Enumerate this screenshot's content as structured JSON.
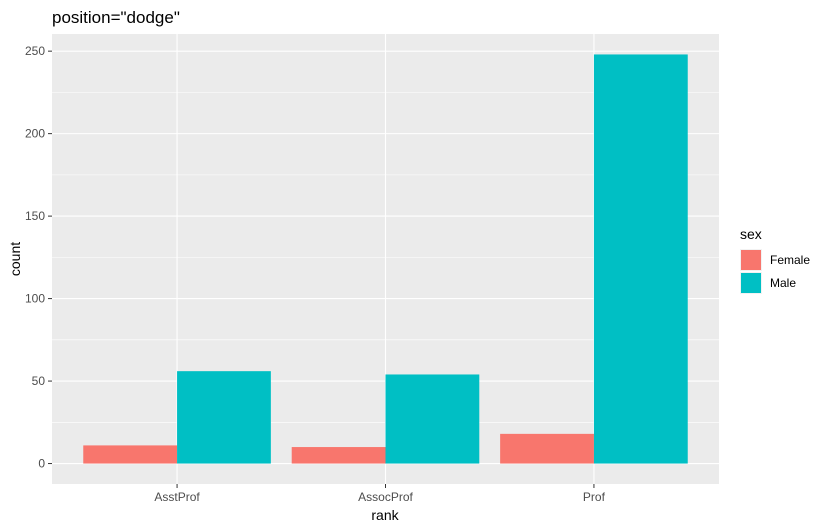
{
  "chart_data": {
    "type": "bar",
    "title": "position=\"dodge\"",
    "xlabel": "rank",
    "ylabel": "count",
    "categories": [
      "AsstProf",
      "AssocProf",
      "Prof"
    ],
    "series": [
      {
        "name": "Female",
        "values": [
          11,
          10,
          18
        ],
        "color": "#F8766D"
      },
      {
        "name": "Male",
        "values": [
          56,
          54,
          248
        ],
        "color": "#00BFC4"
      }
    ],
    "ylim": [
      -12.4,
      260.4
    ],
    "yticks": [
      0,
      50,
      100,
      150,
      200,
      250
    ],
    "grid": true,
    "legend": {
      "title": "sex",
      "position": "right"
    },
    "colors": {
      "panel": "#EBEBEB",
      "grid_major": "#FFFFFF",
      "tick_text": "#4D4D4D",
      "tick_mark": "#333333"
    }
  }
}
